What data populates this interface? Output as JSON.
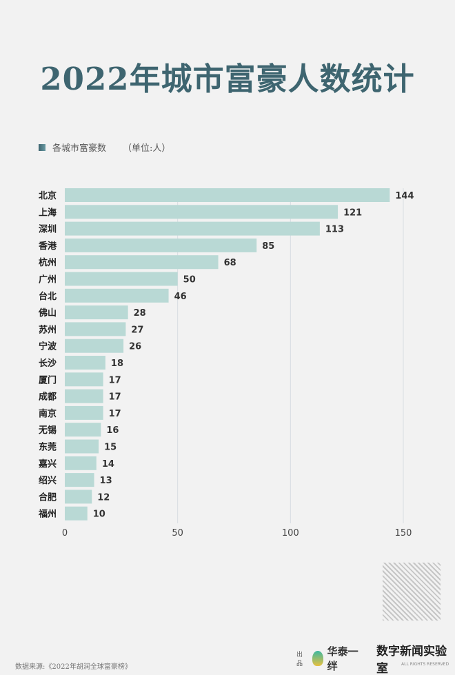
{
  "chart_data": {
    "type": "bar",
    "orientation": "horizontal",
    "title": "2022年城市富豪人数统计",
    "legend": "各城市富豪数",
    "unit": "（单位:人）",
    "categories": [
      "北京",
      "上海",
      "深圳",
      "香港",
      "杭州",
      "广州",
      "台北",
      "佛山",
      "苏州",
      "宁波",
      "长沙",
      "厦门",
      "成都",
      "南京",
      "无锡",
      "东莞",
      "嘉兴",
      "绍兴",
      "合肥",
      "福州"
    ],
    "values": [
      144,
      121,
      113,
      85,
      68,
      50,
      46,
      28,
      27,
      26,
      18,
      17,
      17,
      17,
      16,
      15,
      14,
      13,
      12,
      10
    ],
    "xlim": [
      0,
      150
    ],
    "xticks": [
      0,
      50,
      100,
      150
    ],
    "grid": true,
    "bar_color": "#b9d9d5",
    "title_color": "#3e6570"
  },
  "footer": {
    "source": "数据来源:《2022年胡润全球富豪榜》",
    "producer_label": "出品",
    "brand1": "华泰一绊",
    "brand2": "数字新闻实验室",
    "rights": "ALL RIGHTS RESERVED"
  }
}
